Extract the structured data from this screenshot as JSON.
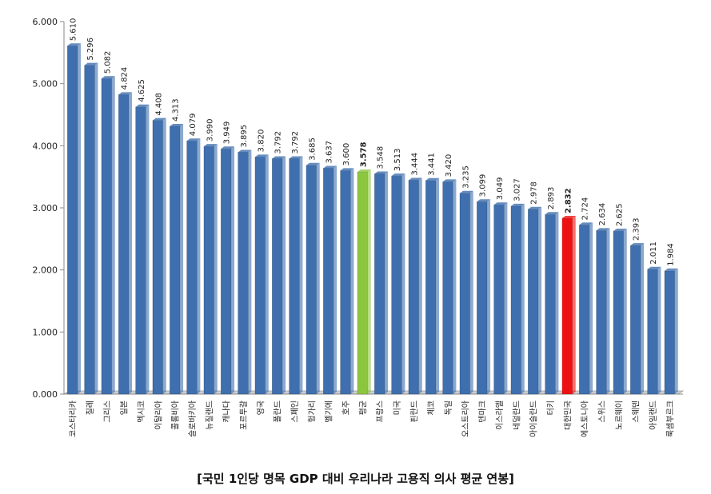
{
  "chart_data": {
    "type": "bar",
    "title": "",
    "xlabel": "",
    "ylabel": "",
    "ylim": [
      0,
      6
    ],
    "y_ticks": [
      "0.000",
      "1.000",
      "2.000",
      "3.000",
      "4.000",
      "5.000",
      "6.000"
    ],
    "grid": false,
    "categories": [
      "코스타리카",
      "칠레",
      "그리스",
      "일본",
      "멕시코",
      "이탈리아",
      "콜롬비아",
      "슬로바키아",
      "뉴질랜드",
      "캐나다",
      "포르투갈",
      "영국",
      "폴란드",
      "스페인",
      "헝가리",
      "벨기에",
      "호주",
      "평균",
      "프랑스",
      "미국",
      "핀란드",
      "체코",
      "독일",
      "오스트리아",
      "덴마크",
      "이스라엘",
      "네덜란드",
      "아이슬란드",
      "터키",
      "대한민국",
      "에스토니아",
      "스위스",
      "노르웨이",
      "스웨덴",
      "아일랜드",
      "룩셈부르크"
    ],
    "values": [
      5.61,
      5.296,
      5.082,
      4.824,
      4.625,
      4.408,
      4.313,
      4.079,
      3.99,
      3.949,
      3.895,
      3.82,
      3.792,
      3.792,
      3.685,
      3.637,
      3.6,
      3.578,
      3.548,
      3.513,
      3.444,
      3.441,
      3.42,
      3.235,
      3.099,
      3.049,
      3.027,
      2.978,
      2.893,
      2.832,
      2.724,
      2.634,
      2.625,
      2.393,
      2.011,
      1.984
    ],
    "value_labels": [
      "5.610",
      "5.296",
      "5.082",
      "4.824",
      "4.625",
      "4.408",
      "4.313",
      "4.079",
      "3.990",
      "3.949",
      "3.895",
      "3.820",
      "3.792",
      "3.792",
      "3.685",
      "3.637",
      "3.600",
      "3.578",
      "3.548",
      "3.513",
      "3.444",
      "3.441",
      "3.420",
      "3.235",
      "3.099",
      "3.049",
      "3.027",
      "2.978",
      "2.893",
      "2.832",
      "2.724",
      "2.634",
      "2.625",
      "2.393",
      "2.011",
      "1.984"
    ],
    "colors": {
      "default": "#3f6fae",
      "highlight_average": "#8cc63f",
      "highlight_korea": "#ee1111"
    },
    "highlight": {
      "평균": "highlight_average",
      "대한민국": "highlight_korea"
    }
  },
  "caption": "[국민 1인당 명목 GDP 대비 우리나라 고용직 의사 평균 연봉]"
}
